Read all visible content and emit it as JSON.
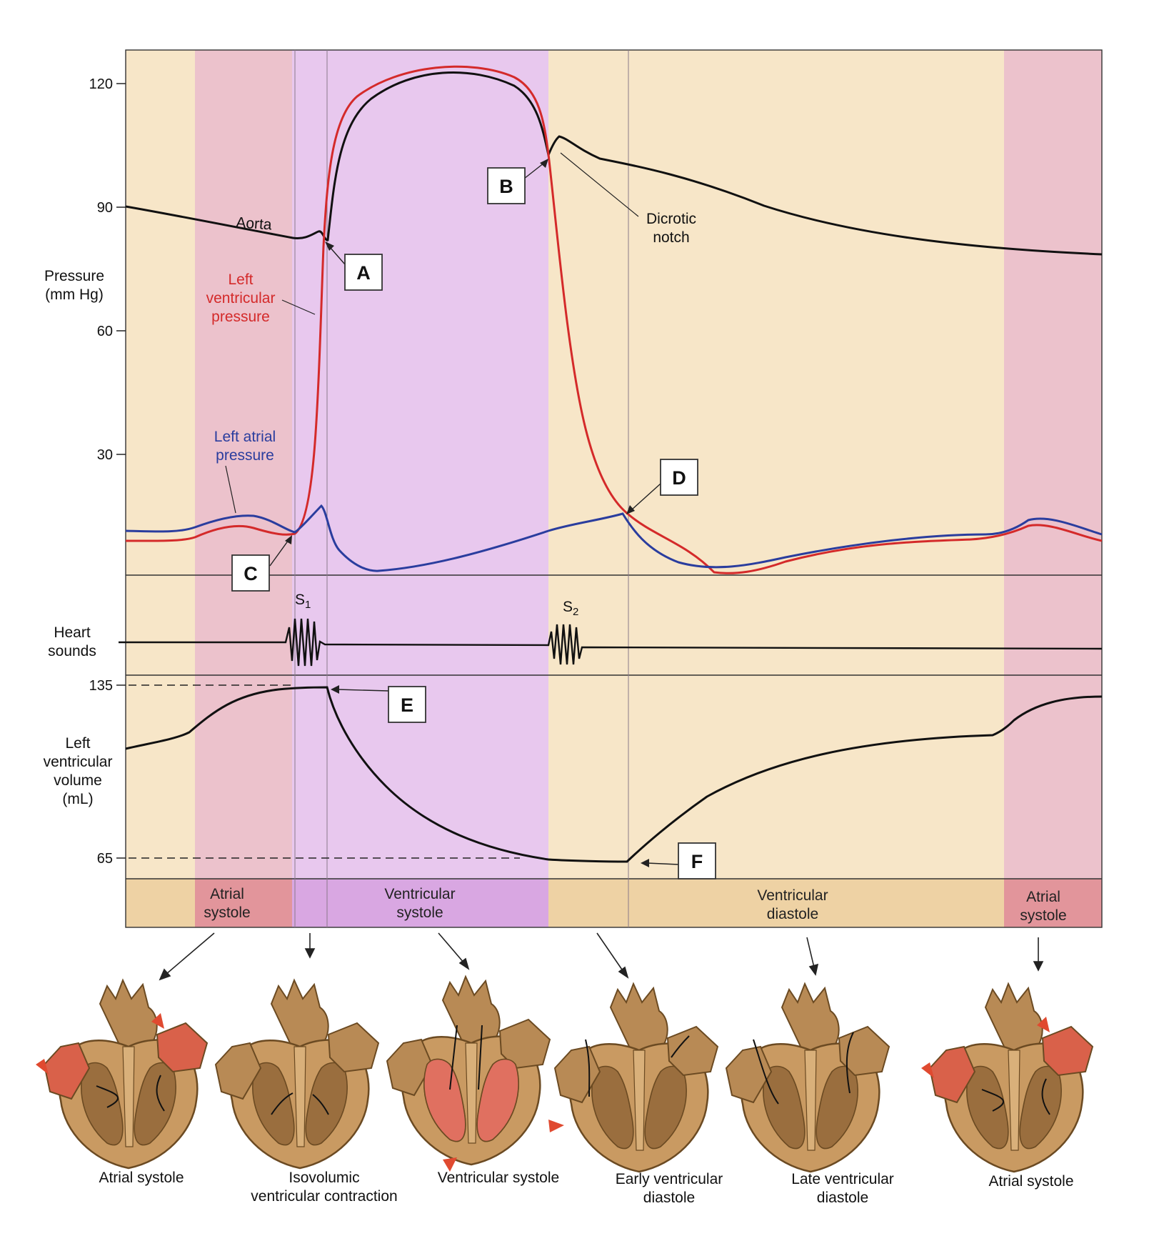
{
  "y_axis": {
    "pressure_title_line1": "Pressure",
    "pressure_title_line2": "(mm Hg)",
    "pressure_ticks": [
      "120",
      "90",
      "60",
      "30"
    ],
    "heart_sounds_line1": "Heart",
    "heart_sounds_line2": "sounds",
    "volume_title_line1": "Left",
    "volume_title_line2": "ventricular",
    "volume_title_line3": "volume",
    "volume_title_line4": "(mL)",
    "volume_ticks": [
      "135",
      "65"
    ]
  },
  "curve_labels": {
    "aorta": "Aorta",
    "lv_line1": "Left",
    "lv_line2": "ventricular",
    "lv_line3": "pressure",
    "la_line1": "Left atrial",
    "la_line2": "pressure",
    "dicrotic_line1": "Dicrotic",
    "dicrotic_line2": "notch",
    "s1": "S",
    "s1_sub": "1",
    "s2": "S",
    "s2_sub": "2"
  },
  "markers": [
    "A",
    "B",
    "C",
    "D",
    "E",
    "F"
  ],
  "phases": {
    "atrial_1_line1": "Atrial",
    "atrial_1_line2": "systole",
    "ventricular_line1": "Ventricular",
    "ventricular_line2": "systole",
    "diastole_line1": "Ventricular",
    "diastole_line2": "diastole",
    "atrial_2_line1": "Atrial",
    "atrial_2_line2": "systole"
  },
  "heart_labels": {
    "h1": "Atrial systole",
    "h2_line1": "Isovolumic",
    "h2_line2": "ventricular contraction",
    "h3": "Ventricular systole",
    "h4_line1": "Early ventricular",
    "h4_line2": "diastole",
    "h5_line1": "Late ventricular",
    "h5_line2": "diastole",
    "h6": "Atrial systole"
  },
  "colors": {
    "aorta": "#111111",
    "left_ventricular_pressure": "#d42a2a",
    "left_atrial_pressure": "#2a3d9e",
    "atrial_band": "#ecc2cc",
    "ventricular_band": "#e8c8ee",
    "diastole_band": "#f7e6c8"
  }
}
